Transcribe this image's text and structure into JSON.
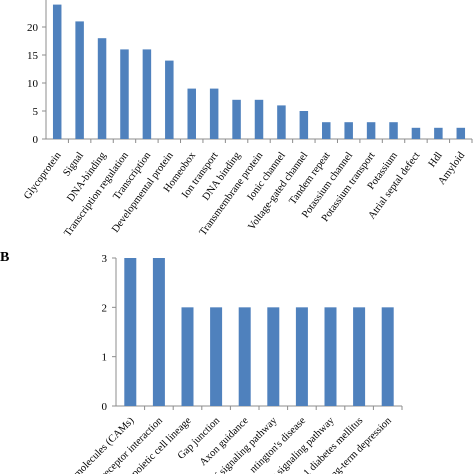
{
  "figure": {
    "panel_b_label": "B"
  },
  "colors": {
    "bar": "#4f81bd",
    "axis": "#8c8c8c"
  },
  "chart_data": [
    {
      "type": "bar",
      "panel": "A",
      "title": "",
      "xlabel": "",
      "ylabel": "",
      "ylim": [
        0,
        25
      ],
      "yticks": [
        0,
        5,
        10,
        15,
        20
      ],
      "categories": [
        "Glycoprotein",
        "Signal",
        "DNA-binding",
        "Transcription regulation",
        "Transcription",
        "Developmental protein",
        "Homeobox",
        "Ion transport",
        "DNA binding",
        "Transmembrane protein",
        "Ionic channel",
        "Voltage-gated channel",
        "Tandem repeat",
        "Potassium channel",
        "Potassium transport",
        "Potassium",
        "Atrial septal defect",
        "Hdl",
        "Amyloid"
      ],
      "values": [
        24,
        21,
        18,
        16,
        16,
        14,
        9,
        9,
        7,
        7,
        6,
        5,
        3,
        3,
        3,
        3,
        2,
        2,
        2
      ],
      "grid": false,
      "legend": "none"
    },
    {
      "type": "bar",
      "panel": "B",
      "title": "",
      "xlabel": "",
      "ylabel": "",
      "ylim": [
        0,
        3
      ],
      "yticks": [
        0,
        1,
        2,
        3
      ],
      "categories": [
        "molecules (CAMs)",
        "receptor interaction",
        "poietic cell lineage",
        "Gap junction",
        "Axon guidance",
        "f signaling pathway",
        "ntington's disease",
        "r signaling pathway",
        "1 diabetes mellitus",
        "ng-term depression"
      ],
      "values": [
        3,
        3,
        2,
        2,
        2,
        2,
        2,
        2,
        2,
        2
      ],
      "grid": false,
      "legend": "none"
    }
  ]
}
